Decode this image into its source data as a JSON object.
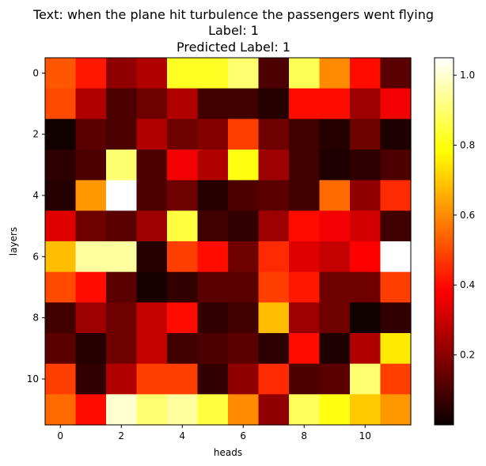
{
  "chart_data": {
    "type": "heatmap",
    "title_lines": [
      "Text: when the plane hit turbulence the passengers went flying",
      "Label: 1",
      "Predicted Label: 1"
    ],
    "xlabel": "heads",
    "ylabel": "layers",
    "colormap": "hot",
    "x_ticks": [
      0,
      2,
      4,
      6,
      8,
      10
    ],
    "y_ticks": [
      0,
      2,
      4,
      6,
      8,
      10
    ],
    "colorbar": {
      "range": [
        0.0,
        1.05
      ],
      "ticks": [
        0.2,
        0.4,
        0.6,
        0.8,
        1.0
      ],
      "tick_labels": [
        "0.2",
        "0.4",
        "0.6",
        "0.8",
        "1.0"
      ]
    },
    "values": [
      [
        0.52,
        0.42,
        0.2,
        0.25,
        0.82,
        0.82,
        0.9,
        0.1,
        0.87,
        0.6,
        0.4,
        0.12
      ],
      [
        0.5,
        0.25,
        0.1,
        0.15,
        0.25,
        0.08,
        0.08,
        0.04,
        0.4,
        0.4,
        0.22,
        0.35
      ],
      [
        0.01,
        0.12,
        0.1,
        0.25,
        0.15,
        0.18,
        0.48,
        0.15,
        0.08,
        0.04,
        0.15,
        0.03
      ],
      [
        0.05,
        0.1,
        0.9,
        0.1,
        0.35,
        0.25,
        0.8,
        0.22,
        0.08,
        0.03,
        0.05,
        0.1
      ],
      [
        0.04,
        0.62,
        1.05,
        0.1,
        0.15,
        0.04,
        0.1,
        0.12,
        0.08,
        0.55,
        0.2,
        0.45
      ],
      [
        0.32,
        0.15,
        0.12,
        0.22,
        0.85,
        0.08,
        0.06,
        0.22,
        0.4,
        0.35,
        0.3,
        0.08
      ],
      [
        0.68,
        0.95,
        0.95,
        0.04,
        0.48,
        0.4,
        0.15,
        0.45,
        0.32,
        0.28,
        0.38,
        1.05
      ],
      [
        0.5,
        0.4,
        0.12,
        0.02,
        0.06,
        0.12,
        0.12,
        0.48,
        0.42,
        0.15,
        0.15,
        0.48
      ],
      [
        0.08,
        0.22,
        0.15,
        0.28,
        0.4,
        0.06,
        0.08,
        0.68,
        0.22,
        0.15,
        0.01,
        0.06
      ],
      [
        0.12,
        0.04,
        0.15,
        0.28,
        0.08,
        0.1,
        0.12,
        0.05,
        0.4,
        0.03,
        0.25,
        0.75
      ],
      [
        0.48,
        0.06,
        0.25,
        0.48,
        0.48,
        0.06,
        0.2,
        0.45,
        0.1,
        0.12,
        0.9,
        0.48
      ],
      [
        0.55,
        0.4,
        1.0,
        0.9,
        0.95,
        0.85,
        0.6,
        0.2,
        0.88,
        0.8,
        0.7,
        0.62
      ]
    ]
  }
}
